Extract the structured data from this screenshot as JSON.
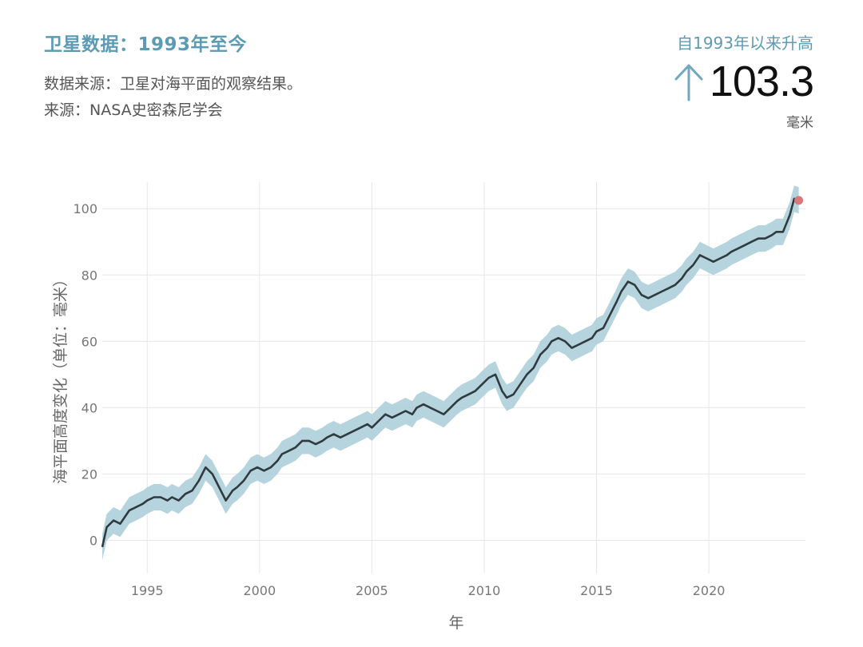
{
  "header": {
    "title": "卫星数据：1993年至今",
    "source_line1": "数据来源：卫星对海平面的观察结果。",
    "source_line2": "来源：NASA史密森尼学会"
  },
  "stat": {
    "label": "自1993年以来升高",
    "value": "103.3",
    "unit": "毫米",
    "arrow_icon": "up-arrow-icon",
    "accent_color": "#6fa8c0"
  },
  "chart_data": {
    "type": "line",
    "xlabel": "年",
    "ylabel": "海平面高度变化（单位：毫米）",
    "xlim": [
      1993,
      2024.3
    ],
    "ylim": [
      -10,
      108
    ],
    "x_ticks": [
      1995,
      2000,
      2005,
      2010,
      2015,
      2020
    ],
    "y_ticks": [
      0,
      20,
      40,
      60,
      80,
      100
    ],
    "grid": true,
    "band_halfwidth": 4,
    "line_color": "#2f3b3f",
    "band_color": "#a9ccd8",
    "end_marker_color": "#d9787b",
    "series": [
      {
        "x": [
          1993.0,
          1993.2,
          1993.5,
          1993.8,
          1994.0,
          1994.2,
          1994.5,
          1994.8,
          1995.0,
          1995.3,
          1995.6,
          1995.9,
          1996.1,
          1996.4,
          1996.7,
          1997.0,
          1997.3,
          1997.6,
          1997.9,
          1998.2,
          1998.5,
          1998.8,
          1999.0,
          1999.3,
          1999.6,
          1999.9,
          2000.2,
          2000.5,
          2000.8,
          2001.0,
          2001.3,
          2001.6,
          2001.9,
          2002.2,
          2002.5,
          2002.8,
          2003.0,
          2003.3,
          2003.6,
          2003.9,
          2004.2,
          2004.5,
          2004.8,
          2005.0,
          2005.3,
          2005.6,
          2005.9,
          2006.2,
          2006.5,
          2006.8,
          2007.0,
          2007.3,
          2007.6,
          2007.9,
          2008.2,
          2008.5,
          2008.8,
          2009.0,
          2009.3,
          2009.6,
          2009.9,
          2010.2,
          2010.5,
          2010.8,
          2011.0,
          2011.3,
          2011.6,
          2011.9,
          2012.2,
          2012.5,
          2012.8,
          2013.0,
          2013.3,
          2013.6,
          2013.9,
          2014.2,
          2014.5,
          2014.8,
          2015.0,
          2015.3,
          2015.6,
          2015.9,
          2016.1,
          2016.4,
          2016.7,
          2017.0,
          2017.3,
          2017.6,
          2017.9,
          2018.2,
          2018.5,
          2018.8,
          2019.0,
          2019.3,
          2019.6,
          2019.9,
          2020.2,
          2020.5,
          2020.8,
          2021.0,
          2021.3,
          2021.6,
          2021.9,
          2022.2,
          2022.5,
          2022.8,
          2023.0,
          2023.3,
          2023.6,
          2023.8,
          2024.0
        ],
        "values": [
          -2,
          4,
          6,
          5,
          7,
          9,
          10,
          11,
          12,
          13,
          13,
          12,
          13,
          12,
          14,
          15,
          18,
          22,
          20,
          16,
          12,
          15,
          16,
          18,
          21,
          22,
          21,
          22,
          24,
          26,
          27,
          28,
          30,
          30,
          29,
          30,
          31,
          32,
          31,
          32,
          33,
          34,
          35,
          34,
          36,
          38,
          37,
          38,
          39,
          38,
          40,
          41,
          40,
          39,
          38,
          40,
          42,
          43,
          44,
          45,
          47,
          49,
          50,
          45,
          43,
          44,
          47,
          50,
          52,
          56,
          58,
          60,
          61,
          60,
          58,
          59,
          60,
          61,
          63,
          64,
          68,
          72,
          75,
          78,
          77,
          74,
          73,
          74,
          75,
          76,
          77,
          79,
          81,
          83,
          86,
          85,
          84,
          85,
          86,
          87,
          88,
          89,
          90,
          91,
          91,
          92,
          93,
          93,
          98,
          103,
          102.5
        ]
      }
    ]
  }
}
